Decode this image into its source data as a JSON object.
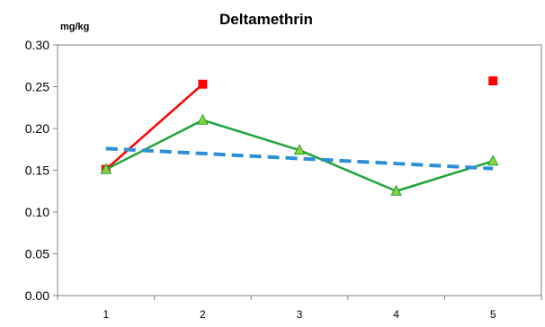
{
  "chart_data": {
    "type": "line",
    "title": "Deltamethrin",
    "unit_label": "mg/kg",
    "xlabel": "",
    "ylabel": "",
    "categories": [
      "1",
      "2",
      "3",
      "4",
      "5"
    ],
    "ylim": [
      0,
      0.3
    ],
    "yticks": [
      "0.00",
      "0.05",
      "0.10",
      "0.15",
      "0.20",
      "0.25",
      "0.30"
    ],
    "grid": false,
    "series": [
      {
        "values": [
          0.151,
          0.253,
          null,
          null,
          null
        ],
        "color": "#ff0000",
        "marker": "square",
        "line": "solid"
      },
      {
        "values": [
          null,
          null,
          null,
          null,
          0.257
        ],
        "color": "#ff0000",
        "marker": "square",
        "line": "none"
      },
      {
        "values": [
          0.151,
          0.21,
          0.174,
          0.125,
          0.161
        ],
        "color": "#1fa33a",
        "marker_fill": "#8cd13a",
        "marker": "triangle",
        "line": "solid"
      },
      {
        "values": [
          0.176,
          0.17,
          0.164,
          0.158,
          0.152
        ],
        "color": "#2e8fd6",
        "marker": "none",
        "line": "dashed"
      }
    ]
  }
}
